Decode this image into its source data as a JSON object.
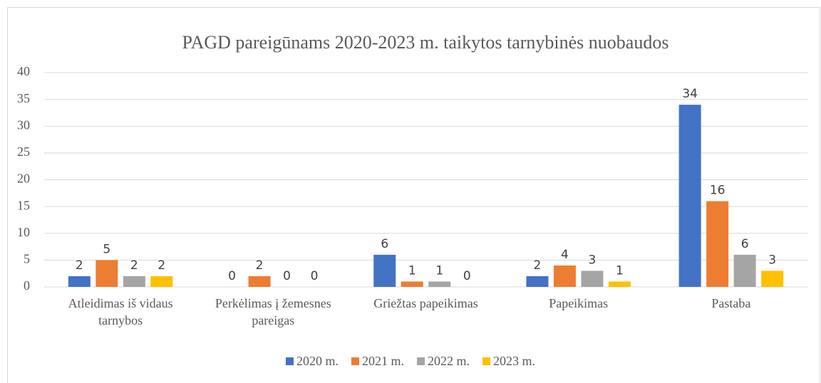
{
  "chart_data": {
    "type": "bar",
    "title": "PAGD pareigūnams 2020-2023 m. taikytos tarnybinės nuobaudos",
    "categories": [
      "Atleidimas iš vidaus tarnybos",
      "Perkėlimas į žemesnes pareigas",
      "Griežtas papeikimas",
      "Papeikimas",
      "Pastaba"
    ],
    "series": [
      {
        "name": "2020 m.",
        "color": "#4472c4",
        "values": [
          2,
          0,
          6,
          2,
          34
        ]
      },
      {
        "name": "2021 m.",
        "color": "#ed7d31",
        "values": [
          5,
          2,
          1,
          4,
          16
        ]
      },
      {
        "name": "2022 m.",
        "color": "#a5a5a5",
        "values": [
          2,
          0,
          1,
          3,
          6
        ]
      },
      {
        "name": "2023 m.",
        "color": "#ffc000",
        "values": [
          2,
          0,
          0,
          1,
          3
        ]
      }
    ],
    "ylim": [
      0,
      40
    ],
    "yticks": [
      0,
      5,
      10,
      15,
      20,
      25,
      30,
      35,
      40
    ],
    "grid": true,
    "legend": "bottom"
  }
}
